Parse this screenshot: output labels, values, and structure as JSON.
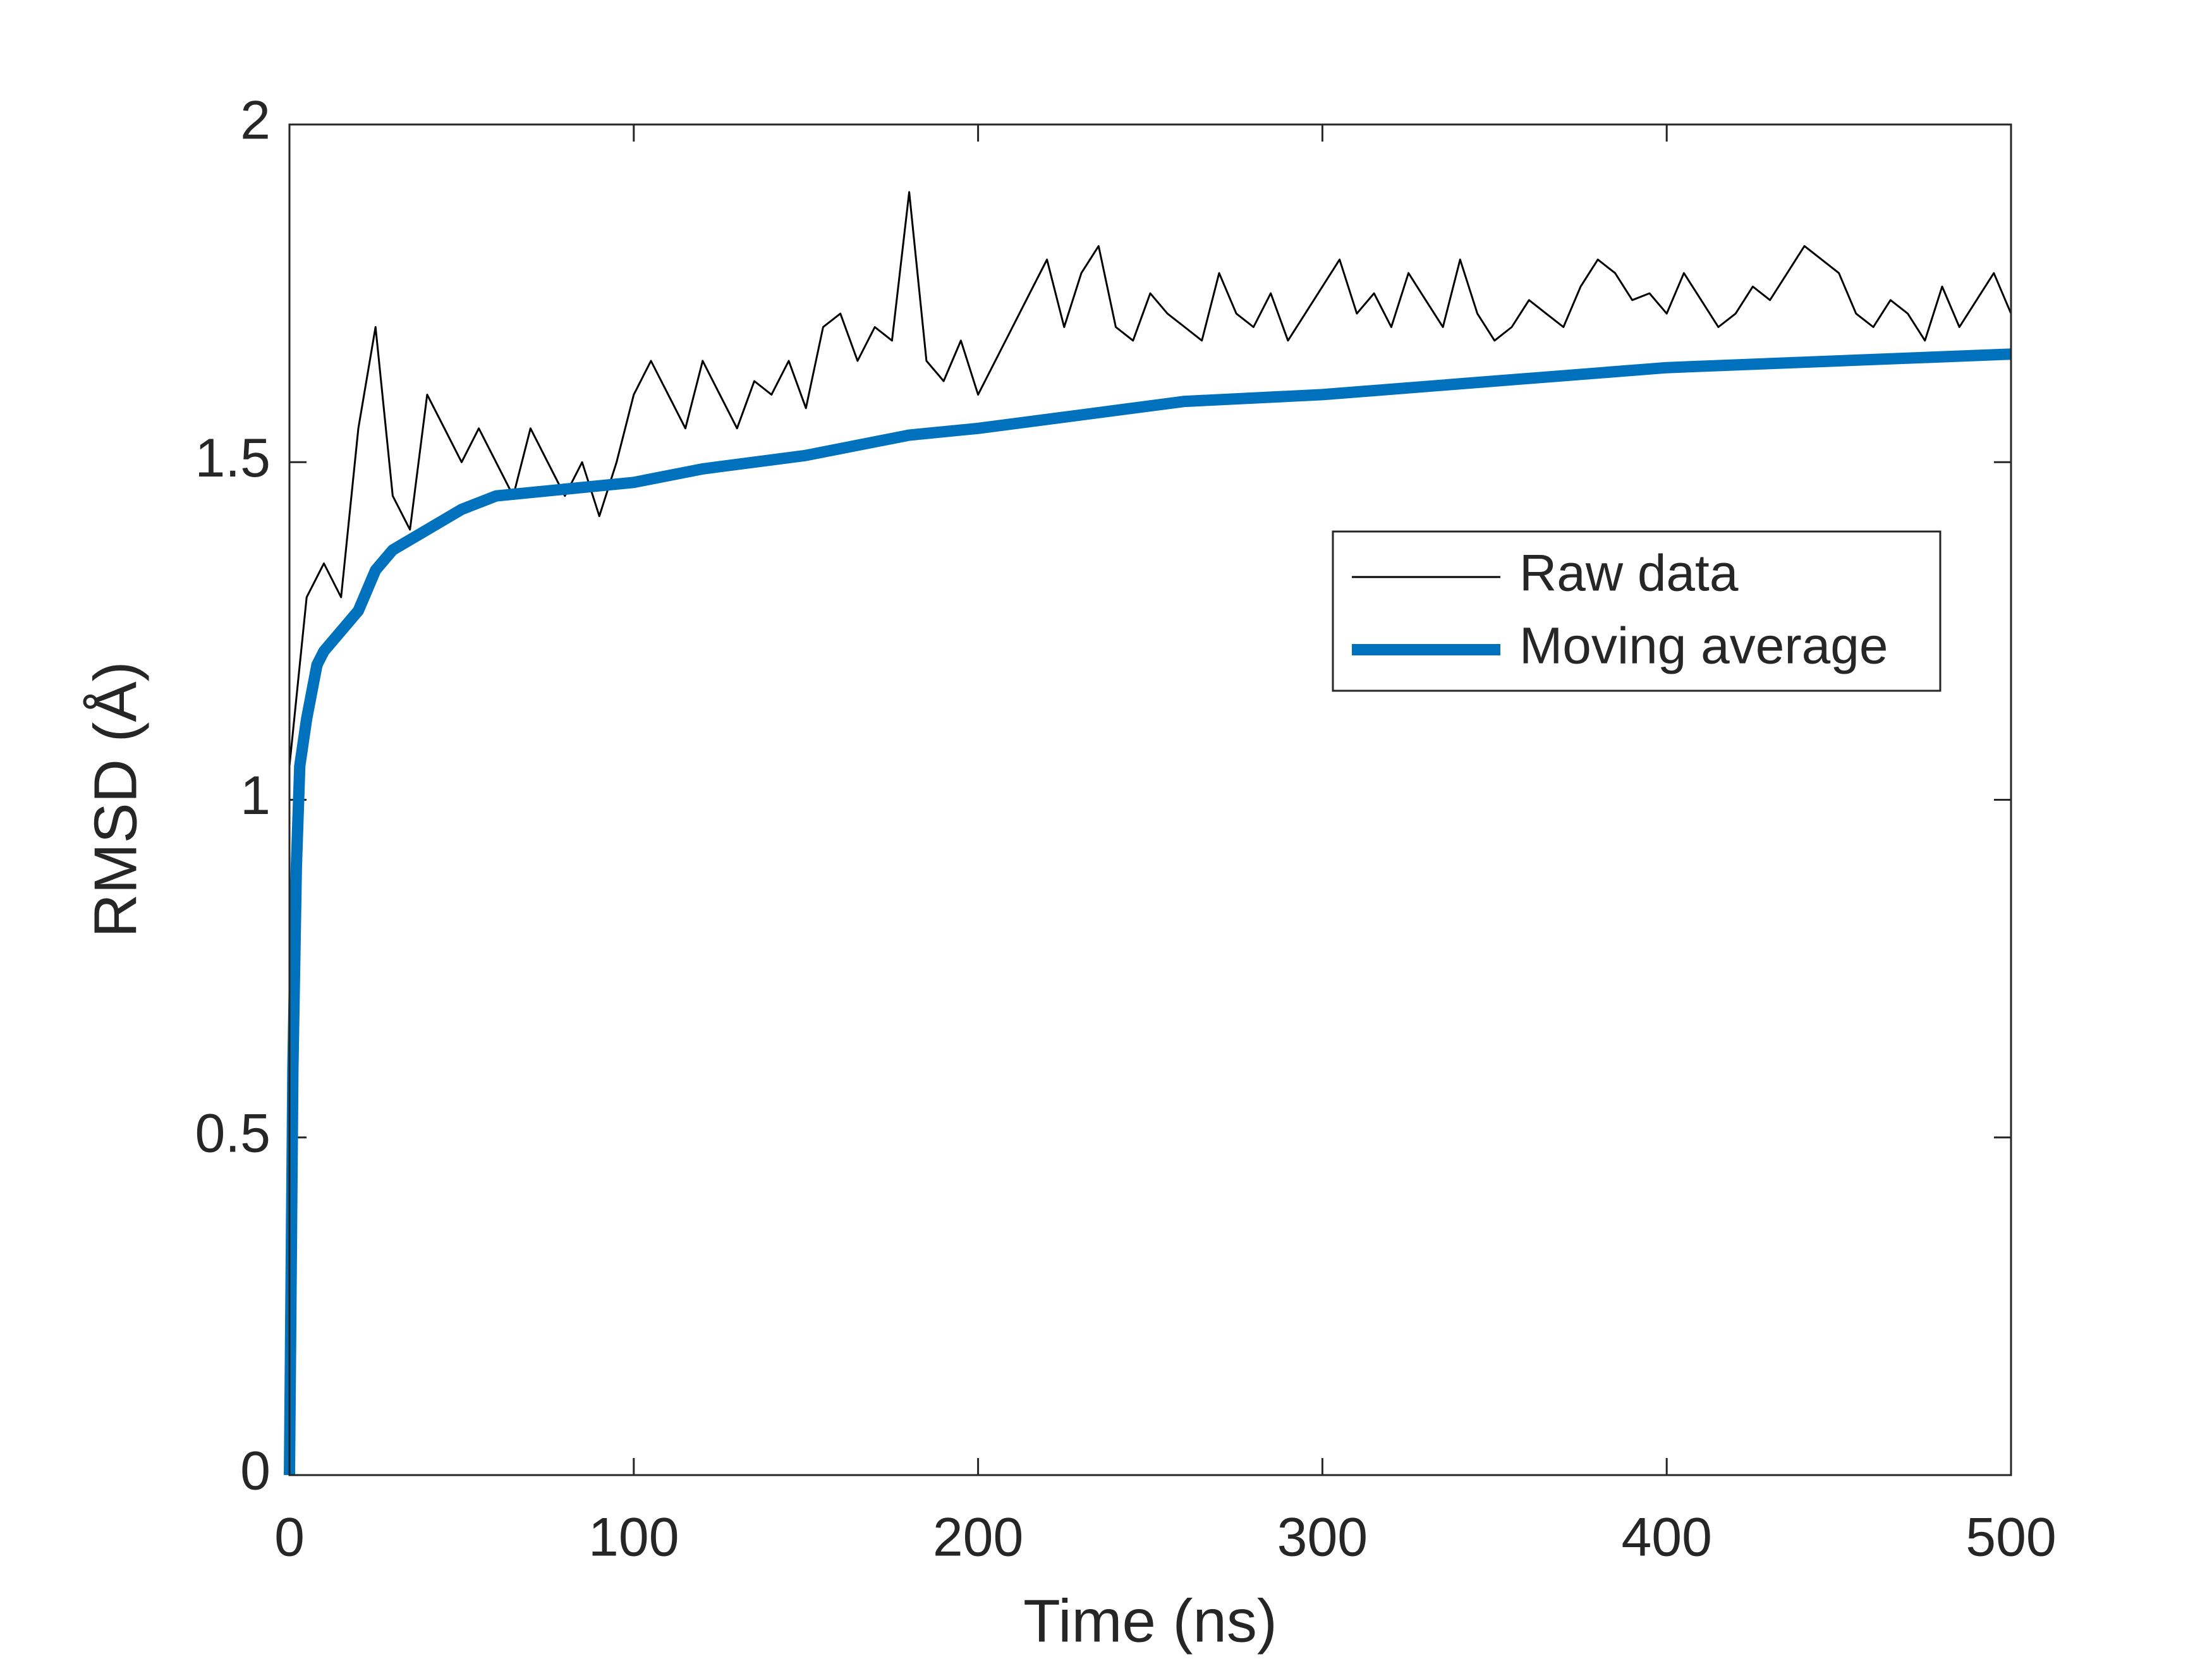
{
  "chart_data": {
    "type": "line",
    "xlabel": "Time (ns)",
    "ylabel": "RMSD (Å)",
    "xlim": [
      0,
      500
    ],
    "xticks": [
      0,
      100,
      200,
      300,
      400,
      500
    ],
    "ylim": [
      0,
      2
    ],
    "yticks": [
      0,
      0.5,
      1,
      1.5,
      2
    ],
    "legend": "northeast",
    "series": [
      {
        "name": "Raw data",
        "color": "#000000",
        "x": [
          0,
          5,
          10,
          15,
          20,
          25,
          30,
          35,
          40,
          45,
          50,
          55,
          60,
          65,
          70,
          75,
          80,
          85,
          90,
          95,
          100,
          105,
          110,
          115,
          120,
          125,
          130,
          135,
          140,
          145,
          150,
          155,
          160,
          165,
          170,
          175,
          180,
          185,
          190,
          195,
          200,
          205,
          210,
          215,
          220,
          225,
          230,
          235,
          240,
          245,
          250,
          255,
          260,
          265,
          270,
          275,
          280,
          285,
          290,
          295,
          300,
          305,
          310,
          315,
          320,
          325,
          330,
          335,
          340,
          345,
          350,
          355,
          360,
          365,
          370,
          375,
          380,
          385,
          390,
          395,
          400,
          405,
          410,
          415,
          420,
          425,
          430,
          435,
          440,
          445,
          450,
          455,
          460,
          465,
          470,
          475,
          480,
          485,
          490,
          495,
          500
        ],
        "values": [
          1.05,
          1.3,
          1.35,
          1.3,
          1.55,
          1.7,
          1.45,
          1.4,
          1.6,
          1.55,
          1.5,
          1.55,
          1.5,
          1.45,
          1.55,
          1.5,
          1.45,
          1.5,
          1.42,
          1.5,
          1.6,
          1.65,
          1.6,
          1.55,
          1.65,
          1.6,
          1.55,
          1.62,
          1.6,
          1.65,
          1.58,
          1.7,
          1.72,
          1.65,
          1.7,
          1.68,
          1.9,
          1.65,
          1.62,
          1.68,
          1.6,
          1.65,
          1.7,
          1.75,
          1.8,
          1.7,
          1.78,
          1.82,
          1.7,
          1.68,
          1.75,
          1.72,
          1.7,
          1.68,
          1.78,
          1.72,
          1.7,
          1.75,
          1.68,
          1.72,
          1.76,
          1.8,
          1.72,
          1.75,
          1.7,
          1.78,
          1.74,
          1.7,
          1.8,
          1.72,
          1.68,
          1.7,
          1.74,
          1.72,
          1.7,
          1.76,
          1.8,
          1.78,
          1.74,
          1.75,
          1.72,
          1.78,
          1.74,
          1.7,
          1.72,
          1.76,
          1.74,
          1.78,
          1.82,
          1.8,
          1.78,
          1.72,
          1.7,
          1.74,
          1.72,
          1.68,
          1.76,
          1.7,
          1.74,
          1.78,
          1.72
        ]
      },
      {
        "name": "Moving average",
        "color": "#0072bd",
        "x": [
          0,
          1,
          2,
          3,
          5,
          8,
          10,
          15,
          20,
          25,
          30,
          40,
          50,
          60,
          80,
          100,
          120,
          150,
          180,
          200,
          230,
          260,
          300,
          350,
          400,
          450,
          500
        ],
        "values": [
          0,
          0.6,
          0.9,
          1.05,
          1.12,
          1.2,
          1.22,
          1.25,
          1.28,
          1.34,
          1.37,
          1.4,
          1.43,
          1.45,
          1.46,
          1.47,
          1.49,
          1.51,
          1.54,
          1.55,
          1.57,
          1.59,
          1.6,
          1.62,
          1.64,
          1.65,
          1.66
        ]
      }
    ]
  }
}
